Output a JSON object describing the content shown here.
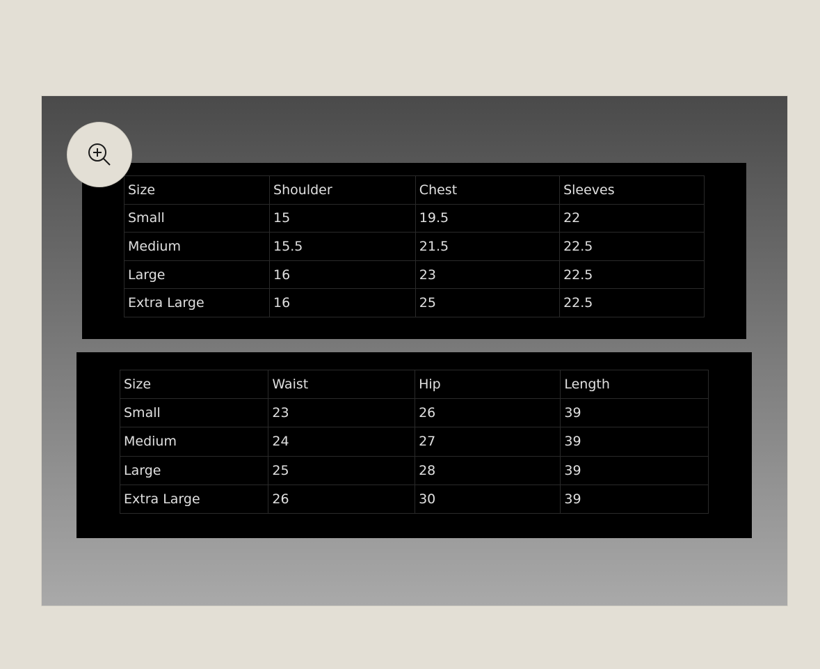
{
  "zoom_button": {
    "icon": "zoom-in-icon"
  },
  "tables": [
    {
      "headers": [
        "Size",
        "Shoulder",
        "Chest",
        "Sleeves"
      ],
      "rows": [
        [
          "Small",
          "15",
          "19.5",
          "22"
        ],
        [
          "Medium",
          "15.5",
          "21.5",
          "22.5"
        ],
        [
          "Large",
          "16",
          "23",
          "22.5"
        ],
        [
          "Extra Large",
          "16",
          "25",
          "22.5"
        ]
      ]
    },
    {
      "headers": [
        "Size",
        "Waist",
        "Hip",
        "Length"
      ],
      "rows": [
        [
          "Small",
          "23",
          "26",
          "39"
        ],
        [
          "Medium",
          "24",
          "27",
          "39"
        ],
        [
          "Large",
          "25",
          "28",
          "39"
        ],
        [
          "Extra Large",
          "26",
          "30",
          "39"
        ]
      ]
    }
  ]
}
